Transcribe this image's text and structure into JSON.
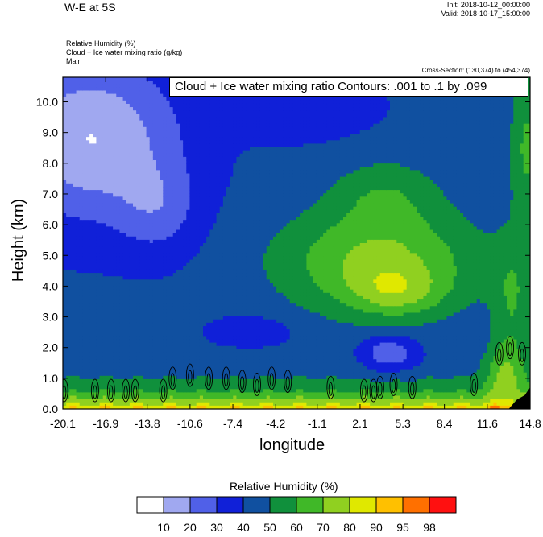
{
  "header": {
    "title": "W-E at 5S",
    "init": "Init: 2018-10-12_00:00:00",
    "valid": "Valid: 2018-10-17_15:00:00",
    "var1": "Relative Humidity   (%)",
    "var2": "Cloud + Ice water mixing ratio   (g/kg)",
    "var3": "Main",
    "cross_section": "Cross-Section: (130,374) to (454,374)"
  },
  "chart_data": {
    "type": "heatmap",
    "title": "W-E at 5S",
    "overlay": "Cloud + Ice water mixing ratio Contours: .001 to .1 by .099",
    "xlabel": "longitude",
    "ylabel": "Height (km)",
    "x_ticks": [
      "-20.1",
      "-16.9",
      "-13.8",
      "-10.6",
      "-7.4",
      "-4.2",
      "-1.1",
      "2.1",
      "5.3",
      "8.4",
      "11.6",
      "14.8"
    ],
    "y_ticks": [
      "0.0",
      "1.0",
      "2.0",
      "3.0",
      "4.0",
      "5.0",
      "6.0",
      "7.0",
      "8.0",
      "9.0",
      "10.0"
    ],
    "xlim": [
      -20.1,
      14.8
    ],
    "ylim": [
      0,
      10.8
    ],
    "colorbar": {
      "title": "Relative Humidity  (%)",
      "levels": [
        10,
        20,
        30,
        40,
        50,
        60,
        70,
        80,
        90,
        95,
        98
      ],
      "colors": [
        "#ffffff",
        "#a0a8f0",
        "#5060e8",
        "#1020d8",
        "#1050a0",
        "#10903c",
        "#40b828",
        "#90d020",
        "#e0e800",
        "#ffc000",
        "#ff7000",
        "#ff1010"
      ]
    },
    "cloud_contour_centers": [
      {
        "x": -20.0,
        "y": 0.6
      },
      {
        "x": -17.7,
        "y": 0.6
      },
      {
        "x": -16.5,
        "y": 0.6
      },
      {
        "x": -15.4,
        "y": 0.6
      },
      {
        "x": -14.7,
        "y": 0.6
      },
      {
        "x": -12.6,
        "y": 0.6
      },
      {
        "x": -11.9,
        "y": 1.0
      },
      {
        "x": -10.6,
        "y": 1.1
      },
      {
        "x": -9.2,
        "y": 1.0
      },
      {
        "x": -7.9,
        "y": 1.0
      },
      {
        "x": -6.7,
        "y": 0.9
      },
      {
        "x": -5.6,
        "y": 0.8
      },
      {
        "x": -4.5,
        "y": 1.0
      },
      {
        "x": -3.3,
        "y": 0.9
      },
      {
        "x": -0.1,
        "y": 0.7
      },
      {
        "x": 2.4,
        "y": 0.6
      },
      {
        "x": 3.1,
        "y": 0.6
      },
      {
        "x": 3.6,
        "y": 0.7
      },
      {
        "x": 4.6,
        "y": 0.8
      },
      {
        "x": 6.0,
        "y": 0.7
      },
      {
        "x": 10.6,
        "y": 0.8
      },
      {
        "x": 12.5,
        "y": 1.8
      },
      {
        "x": 13.3,
        "y": 2.0
      },
      {
        "x": 14.2,
        "y": 1.8
      }
    ],
    "terrain_x_start": 13.2
  }
}
